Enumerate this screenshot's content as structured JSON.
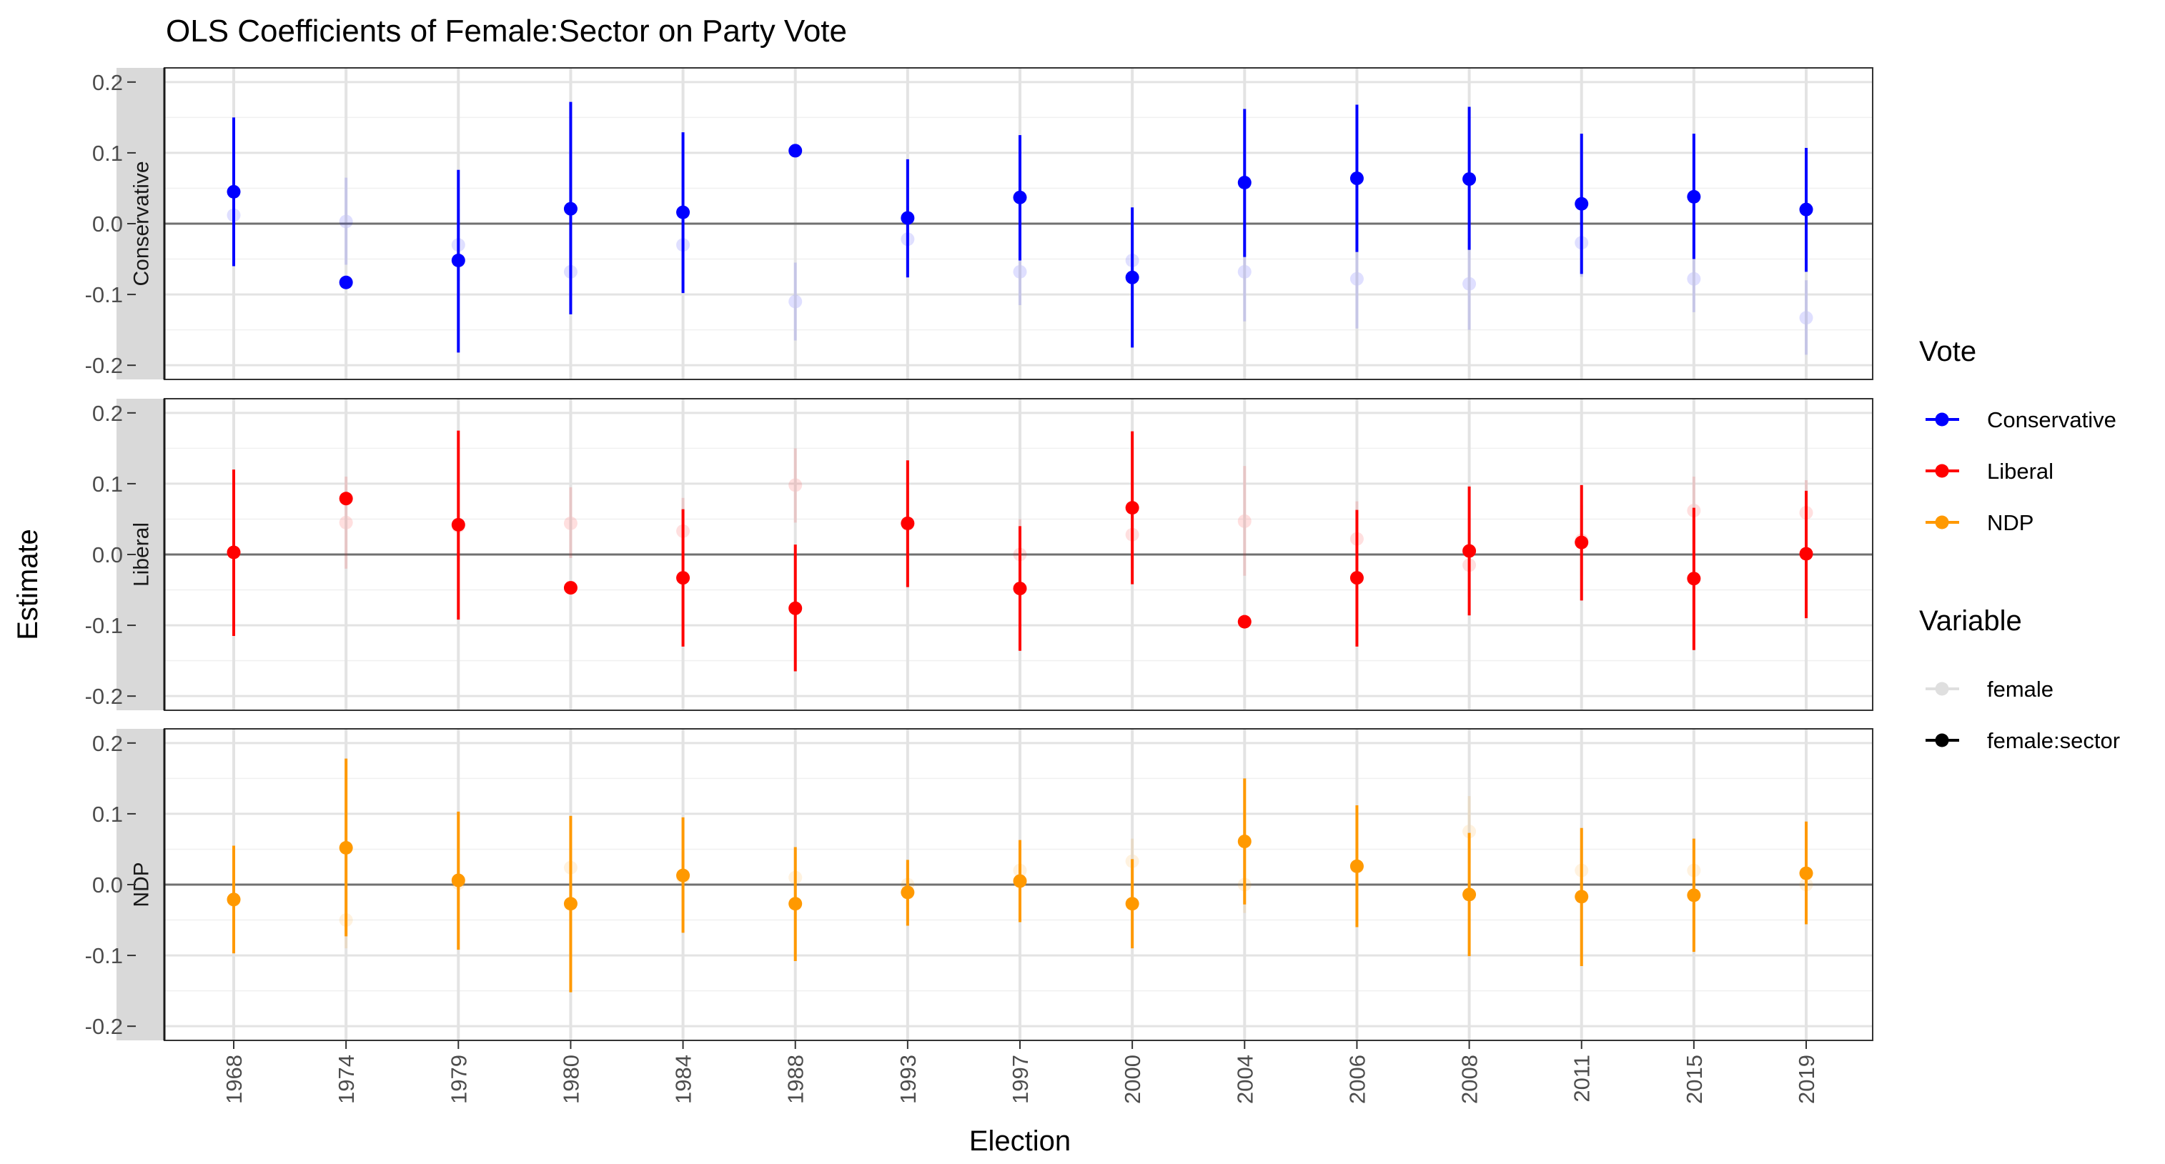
{
  "chart_data": {
    "type": "scatter",
    "subtype": "point-range (coefficient plot) faceted by party",
    "title": "OLS Coefficients of Female:Sector on Party Vote",
    "xlabel": "Election",
    "ylabel": "Estimate",
    "categories": [
      "1968",
      "1974",
      "1979",
      "1980",
      "1984",
      "1988",
      "1993",
      "1997",
      "2000",
      "2004",
      "2006",
      "2008",
      "2011",
      "2015",
      "2019"
    ],
    "ylim": [
      -0.22,
      0.22
    ],
    "yticks": [
      -0.2,
      -0.1,
      0.0,
      0.1,
      0.2
    ],
    "ytick_labels": [
      "-0.2",
      "-0.1",
      "0.0",
      "0.1",
      "0.2"
    ],
    "grid": true,
    "reference_line": 0,
    "facets": [
      {
        "label": "Conservative",
        "color": "#0000ff",
        "series": [
          {
            "name": "female:sector",
            "values": [
              0.045,
              -0.083,
              -0.052,
              0.021,
              0.016,
              0.103,
              0.008,
              0.037,
              -0.076,
              0.058,
              0.064,
              0.063,
              0.028,
              0.038,
              0.02
            ],
            "lower": [
              -0.06,
              null,
              -0.182,
              -0.128,
              -0.098,
              null,
              -0.076,
              -0.052,
              -0.175,
              -0.047,
              -0.04,
              -0.037,
              -0.071,
              -0.05,
              -0.068
            ],
            "upper": [
              0.15,
              null,
              0.076,
              0.172,
              0.129,
              null,
              0.091,
              0.125,
              0.023,
              0.162,
              0.168,
              0.165,
              0.127,
              0.127,
              0.107
            ]
          },
          {
            "name": "female",
            "values": [
              0.012,
              0.003,
              -0.03,
              -0.068,
              -0.03,
              -0.11,
              -0.022,
              -0.068,
              -0.052,
              -0.068,
              -0.078,
              -0.085,
              -0.027,
              -0.078,
              -0.133
            ],
            "lower": [
              -0.03,
              -0.058,
              -0.08,
              -0.115,
              -0.07,
              -0.165,
              -0.07,
              -0.115,
              -0.1,
              -0.138,
              -0.148,
              -0.15,
              -0.075,
              -0.125,
              -0.185
            ],
            "upper": [
              0.055,
              0.065,
              0.02,
              -0.02,
              0.01,
              -0.055,
              0.025,
              -0.02,
              -0.005,
              0.0,
              -0.01,
              -0.02,
              0.02,
              -0.03,
              -0.08
            ]
          }
        ]
      },
      {
        "label": "Liberal",
        "color": "#ff0000",
        "series": [
          {
            "name": "female:sector",
            "values": [
              0.003,
              0.079,
              0.042,
              -0.047,
              -0.033,
              -0.076,
              0.044,
              -0.048,
              0.066,
              -0.095,
              -0.033,
              0.005,
              0.017,
              -0.034,
              0.001
            ],
            "lower": [
              -0.115,
              null,
              -0.092,
              null,
              -0.13,
              -0.165,
              -0.046,
              -0.136,
              -0.042,
              null,
              -0.13,
              -0.086,
              -0.065,
              -0.135,
              -0.09
            ],
            "upper": [
              0.12,
              null,
              0.175,
              null,
              0.064,
              0.014,
              0.133,
              0.04,
              0.174,
              null,
              0.063,
              0.096,
              0.098,
              0.066,
              0.09
            ]
          },
          {
            "name": "female",
            "values": [
              0.003,
              0.045,
              0.04,
              0.044,
              0.033,
              0.098,
              0.043,
              0.0,
              0.028,
              0.047,
              0.022,
              -0.015,
              0.02,
              0.062,
              0.059
            ],
            "lower": [
              -0.05,
              -0.02,
              -0.01,
              -0.005,
              -0.01,
              0.045,
              -0.005,
              -0.05,
              -0.02,
              -0.03,
              -0.03,
              -0.06,
              -0.03,
              0.015,
              0.01
            ],
            "upper": [
              0.05,
              0.11,
              0.09,
              0.095,
              0.08,
              0.15,
              0.09,
              0.05,
              0.075,
              0.125,
              0.075,
              0.03,
              0.07,
              0.11,
              0.105
            ]
          }
        ]
      },
      {
        "label": "NDP",
        "color": "#ff9900",
        "series": [
          {
            "name": "female:sector",
            "values": [
              -0.021,
              0.052,
              0.006,
              -0.027,
              0.013,
              -0.027,
              -0.011,
              0.005,
              -0.027,
              0.061,
              0.026,
              -0.014,
              -0.017,
              -0.015,
              0.016
            ],
            "lower": [
              -0.097,
              -0.073,
              -0.092,
              -0.152,
              -0.068,
              -0.108,
              -0.058,
              -0.053,
              -0.09,
              -0.028,
              -0.06,
              -0.101,
              -0.115,
              -0.095,
              -0.056
            ],
            "upper": [
              0.055,
              0.178,
              0.103,
              0.097,
              0.095,
              0.053,
              0.035,
              0.063,
              0.036,
              0.15,
              0.112,
              0.073,
              0.08,
              0.065,
              0.089
            ]
          },
          {
            "name": "female",
            "values": [
              -0.022,
              -0.05,
              0.002,
              0.024,
              0.01,
              0.01,
              0.0,
              0.02,
              0.033,
              0.0,
              0.025,
              0.075,
              0.02,
              0.02,
              0.0
            ],
            "lower": [
              -0.06,
              -0.09,
              -0.03,
              -0.01,
              -0.025,
              -0.025,
              -0.03,
              -0.015,
              0.0,
              -0.04,
              -0.01,
              0.03,
              -0.015,
              -0.015,
              -0.035
            ],
            "upper": [
              0.015,
              -0.01,
              0.035,
              0.06,
              0.045,
              0.045,
              0.03,
              0.055,
              0.065,
              0.04,
              0.06,
              0.125,
              0.055,
              0.055,
              0.035
            ]
          }
        ]
      }
    ],
    "legend": {
      "placement": "right",
      "groups": [
        {
          "title": "Vote",
          "items": [
            {
              "label": "Conservative",
              "color": "#0000ff"
            },
            {
              "label": "Liberal",
              "color": "#ff0000"
            },
            {
              "label": "NDP",
              "color": "#ff9900"
            }
          ]
        },
        {
          "title": "Variable",
          "items": [
            {
              "label": "female",
              "style": "faded"
            },
            {
              "label": "female:sector",
              "style": "solid"
            }
          ]
        }
      ]
    }
  }
}
